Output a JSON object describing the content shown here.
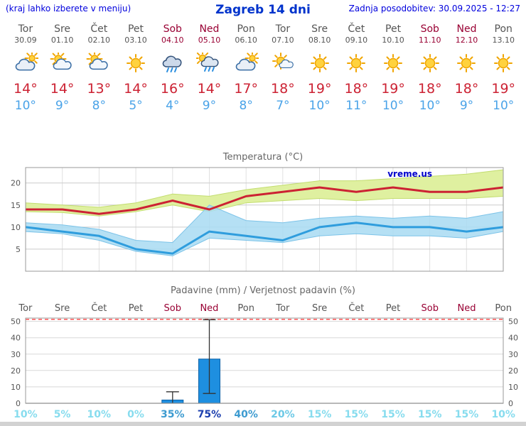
{
  "header": {
    "hint": "(kraj lahko izberete v meniju)",
    "title": "Zagreb 14 dni",
    "updated": "Zadnja posodobitev: 30.09.2025 - 12:27"
  },
  "colors": {
    "title_blue": "#0033cc",
    "link_blue": "#0000dd",
    "weekend": "#990033",
    "weekday": "#555555",
    "tmax": "#cc2233",
    "tmin": "#4aa3e8",
    "watermark_blue": "#0000cc"
  },
  "days": [
    {
      "name": "Tor",
      "date": "30.09",
      "icon": "cloudy",
      "tmax": "14",
      "tmin": "10",
      "weekend": false,
      "prob": "10%",
      "prob_color": "#87dcee"
    },
    {
      "name": "Sre",
      "date": "01.10",
      "icon": "partly-cloudy",
      "tmax": "14",
      "tmin": "9",
      "weekend": false,
      "prob": "5%",
      "prob_color": "#87dcee"
    },
    {
      "name": "Čet",
      "date": "02.10",
      "icon": "partly-cloudy",
      "tmax": "13",
      "tmin": "8",
      "weekend": false,
      "prob": "10%",
      "prob_color": "#87dcee"
    },
    {
      "name": "Pet",
      "date": "03.10",
      "icon": "sunny",
      "tmax": "14",
      "tmin": "5",
      "weekend": false,
      "prob": "0%",
      "prob_color": "#87dcee"
    },
    {
      "name": "Sob",
      "date": "04.10",
      "icon": "rain",
      "tmax": "16",
      "tmin": "4",
      "weekend": true,
      "prob": "35%",
      "prob_color": "#3d9bd0"
    },
    {
      "name": "Ned",
      "date": "05.10",
      "icon": "rain-sun",
      "tmax": "14",
      "tmin": "9",
      "weekend": true,
      "prob": "75%",
      "prob_color": "#1c3fae"
    },
    {
      "name": "Pon",
      "date": "06.10",
      "icon": "cloudy",
      "tmax": "17",
      "tmin": "8",
      "weekend": false,
      "prob": "40%",
      "prob_color": "#3d9bd0"
    },
    {
      "name": "Tor",
      "date": "07.10",
      "icon": "mostly-sunny",
      "tmax": "18",
      "tmin": "7",
      "weekend": false,
      "prob": "20%",
      "prob_color": "#6cc9e6"
    },
    {
      "name": "Sre",
      "date": "08.10",
      "icon": "sunny",
      "tmax": "19",
      "tmin": "10",
      "weekend": false,
      "prob": "15%",
      "prob_color": "#87dcee"
    },
    {
      "name": "Čet",
      "date": "09.10",
      "icon": "sunny",
      "tmax": "18",
      "tmin": "11",
      "weekend": false,
      "prob": "15%",
      "prob_color": "#87dcee"
    },
    {
      "name": "Pet",
      "date": "10.10",
      "icon": "sunny",
      "tmax": "19",
      "tmin": "10",
      "weekend": false,
      "prob": "15%",
      "prob_color": "#87dcee"
    },
    {
      "name": "Sob",
      "date": "11.10",
      "icon": "sunny",
      "tmax": "18",
      "tmin": "10",
      "weekend": true,
      "prob": "15%",
      "prob_color": "#87dcee"
    },
    {
      "name": "Ned",
      "date": "12.10",
      "icon": "sunny",
      "tmax": "18",
      "tmin": "9",
      "weekend": true,
      "prob": "15%",
      "prob_color": "#87dcee"
    },
    {
      "name": "Pon",
      "date": "13.10",
      "icon": "sunny",
      "tmax": "19",
      "tmin": "10",
      "weekend": false,
      "prob": "10%",
      "prob_color": "#87dcee"
    }
  ],
  "chart_data": [
    {
      "type": "area",
      "title": "Temperatura (°C)",
      "watermark": "vreme.us",
      "categories": [
        "30.09",
        "01.10",
        "02.10",
        "03.10",
        "04.10",
        "05.10",
        "06.10",
        "07.10",
        "08.10",
        "09.10",
        "10.10",
        "11.10",
        "12.10",
        "13.10"
      ],
      "ylim": [
        0,
        23.5
      ],
      "yticks": [
        5,
        10,
        15,
        20
      ],
      "series": [
        {
          "name": "tmax",
          "color": "#cc2233",
          "values": [
            14,
            14,
            13,
            14,
            16,
            14,
            17,
            18,
            19,
            18,
            19,
            18,
            18,
            19
          ]
        },
        {
          "name": "tmax_band_upper",
          "values": [
            15.5,
            15,
            14.5,
            15.5,
            17.5,
            17,
            18.5,
            19.5,
            20.5,
            20.5,
            21,
            21.5,
            22,
            23
          ]
        },
        {
          "name": "tmax_band_lower",
          "values": [
            13.5,
            13.3,
            12.5,
            13.5,
            15,
            13.5,
            15.5,
            16,
            16.5,
            16,
            16.5,
            16.5,
            16.5,
            17
          ]
        },
        {
          "name": "tmin",
          "color": "#2f9ddd",
          "values": [
            10,
            9,
            8,
            5,
            4,
            9,
            8,
            7,
            10,
            11,
            10,
            10,
            9,
            10
          ]
        },
        {
          "name": "tmin_band_upper",
          "values": [
            11,
            10.5,
            9.5,
            7,
            6.5,
            15,
            11.5,
            11,
            12,
            12.5,
            12,
            12.5,
            12,
            13.5
          ]
        },
        {
          "name": "tmin_band_lower",
          "values": [
            9,
            8.5,
            7,
            4.5,
            3.5,
            7.5,
            7,
            6.5,
            8,
            8.5,
            8,
            8,
            7.5,
            9
          ]
        }
      ],
      "band_colors": {
        "max": "#dff0a0",
        "min": "#a8daf2"
      },
      "grid": true,
      "legend": "none"
    },
    {
      "type": "bar",
      "title": "Padavine (mm) / Verjetnost padavin (%)",
      "categories": [
        "Tor",
        "Sre",
        "Čet",
        "Pet",
        "Sob",
        "Ned",
        "Pon",
        "Tor",
        "Sre",
        "Čet",
        "Pet",
        "Sob",
        "Ned",
        "Pon"
      ],
      "values": [
        0,
        0,
        0,
        0,
        2,
        27,
        0,
        0,
        0,
        0,
        0,
        0,
        0,
        0
      ],
      "whisker_low": [
        null,
        null,
        null,
        null,
        0,
        6,
        null,
        null,
        null,
        null,
        null,
        null,
        null,
        null
      ],
      "whisker_high": [
        null,
        null,
        null,
        null,
        7,
        51,
        null,
        null,
        null,
        null,
        null,
        null,
        null,
        null
      ],
      "probabilities": [
        "10%",
        "5%",
        "10%",
        "0%",
        "35%",
        "75%",
        "40%",
        "20%",
        "15%",
        "15%",
        "15%",
        "15%",
        "15%",
        "10%"
      ],
      "ylim": [
        0,
        52
      ],
      "yticks": [
        0,
        10,
        20,
        30,
        40,
        50
      ],
      "bar_color": "#1e8fe0",
      "limit_line_color": "#ff5555",
      "grid": true,
      "legend": "none"
    }
  ]
}
